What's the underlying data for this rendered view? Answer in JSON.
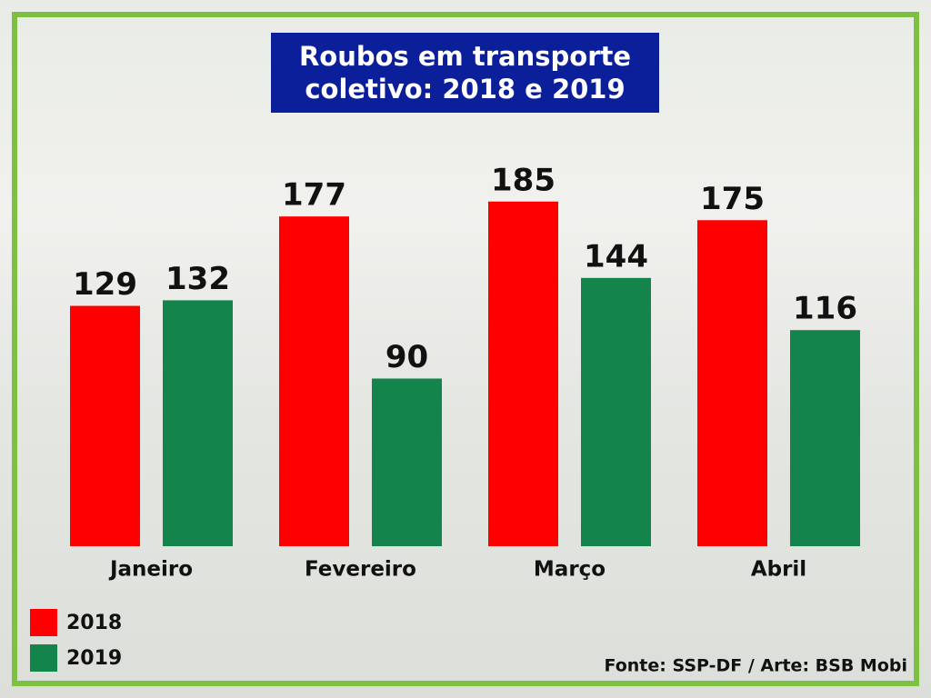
{
  "chart_data": {
    "type": "bar",
    "title": "Roubos em transporte coletivo: 2018 e 2019",
    "categories": [
      "Janeiro",
      "Fevereiro",
      "Março",
      "Abril"
    ],
    "series": [
      {
        "name": "2018",
        "color": "#fe0000",
        "values": [
          129,
          177,
          185,
          175
        ]
      },
      {
        "name": "2019",
        "color": "#13844b",
        "values": [
          132,
          90,
          144,
          116
        ]
      }
    ],
    "legend": "bottom-left",
    "source": "Fonte: SSP-DF / Arte: BSB Mobi"
  }
}
